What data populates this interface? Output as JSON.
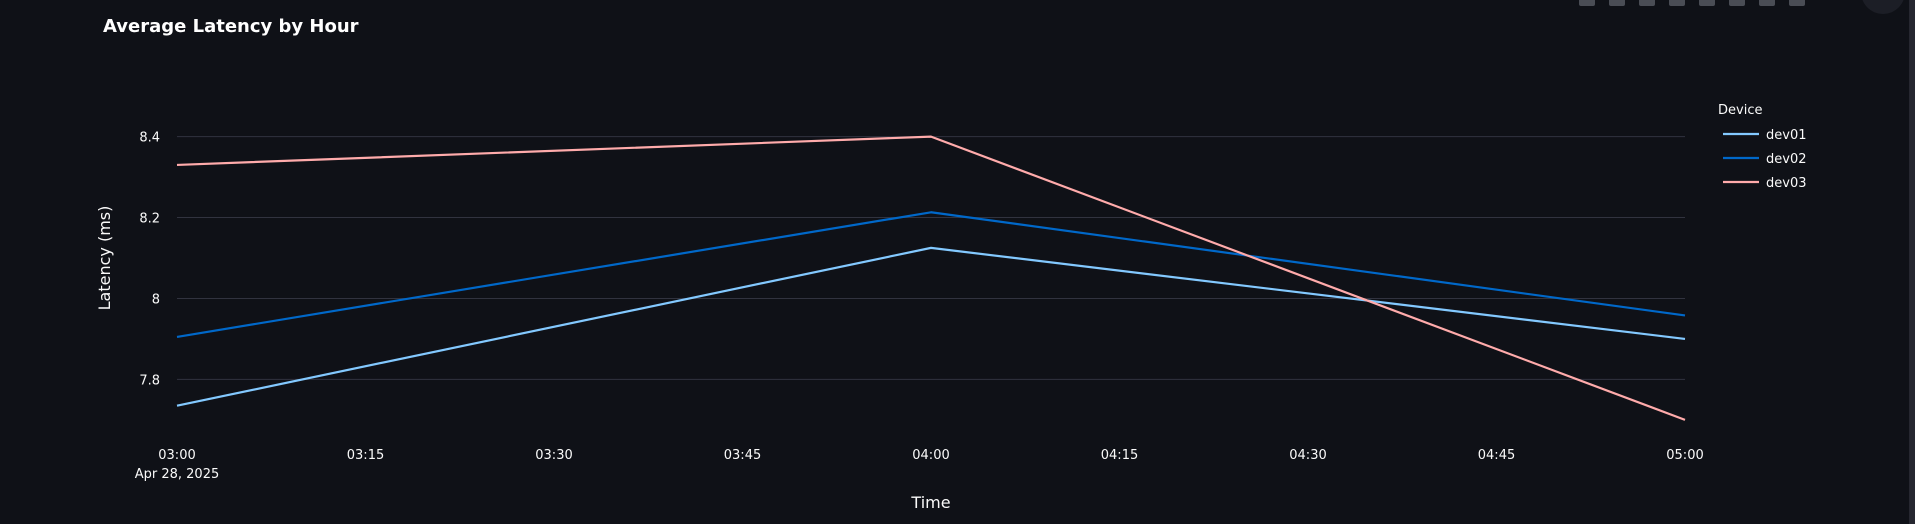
{
  "chart_data": {
    "type": "line",
    "title": "Average Latency by Hour",
    "xlabel": "Time",
    "ylabel": "Latency (ms)",
    "x": [
      "03:00",
      "04:00",
      "05:00"
    ],
    "x_ticks": [
      "03:00",
      "03:15",
      "03:30",
      "03:45",
      "04:00",
      "04:15",
      "04:30",
      "04:45",
      "05:00"
    ],
    "x_date_label": "Apr 28, 2025",
    "y_ticks": [
      7.8,
      8.0,
      8.2,
      8.4
    ],
    "y_tick_labels": [
      "7.8",
      "8",
      "8.2",
      "8.4"
    ],
    "ylim": [
      7.67,
      8.53
    ],
    "grid": true,
    "legend_title": "Device",
    "legend_position": "top-right",
    "series": [
      {
        "name": "dev01",
        "color": "#83c9ff",
        "values": [
          7.735,
          8.125,
          7.9
        ]
      },
      {
        "name": "dev02",
        "color": "#0068c9",
        "values": [
          7.905,
          8.213,
          7.958
        ]
      },
      {
        "name": "dev03",
        "color": "#ffabab",
        "values": [
          8.33,
          8.4,
          7.7
        ]
      }
    ]
  }
}
